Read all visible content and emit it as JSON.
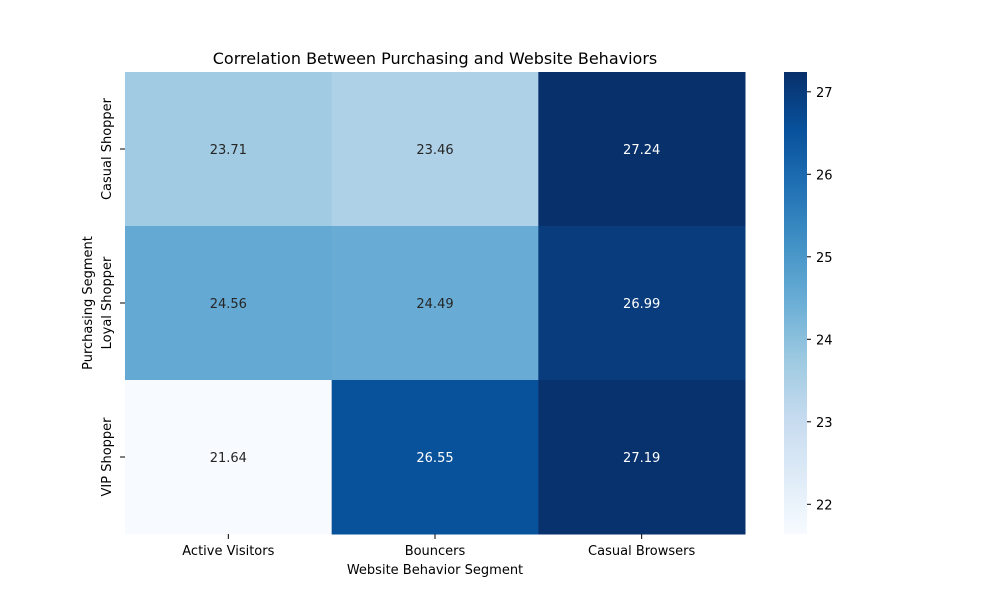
{
  "chart_data": {
    "type": "heatmap",
    "title": "Correlation Between Purchasing and Website Behaviors",
    "xlabel": "Website Behavior Segment",
    "ylabel": "Purchasing Segment",
    "x_categories": [
      "Active Visitors",
      "Bouncers",
      "Casual Browsers"
    ],
    "y_categories": [
      "Casual Shopper",
      "Loyal Shopper",
      "VIP Shopper"
    ],
    "values": [
      [
        23.71,
        23.46,
        27.24
      ],
      [
        24.56,
        24.49,
        26.99
      ],
      [
        21.64,
        26.55,
        27.19
      ]
    ],
    "colormap": "Blues",
    "colorbar": {
      "range": [
        21.64,
        27.24
      ],
      "ticks": [
        22,
        23,
        24,
        25,
        26,
        27
      ]
    },
    "annotations_shown": true
  }
}
